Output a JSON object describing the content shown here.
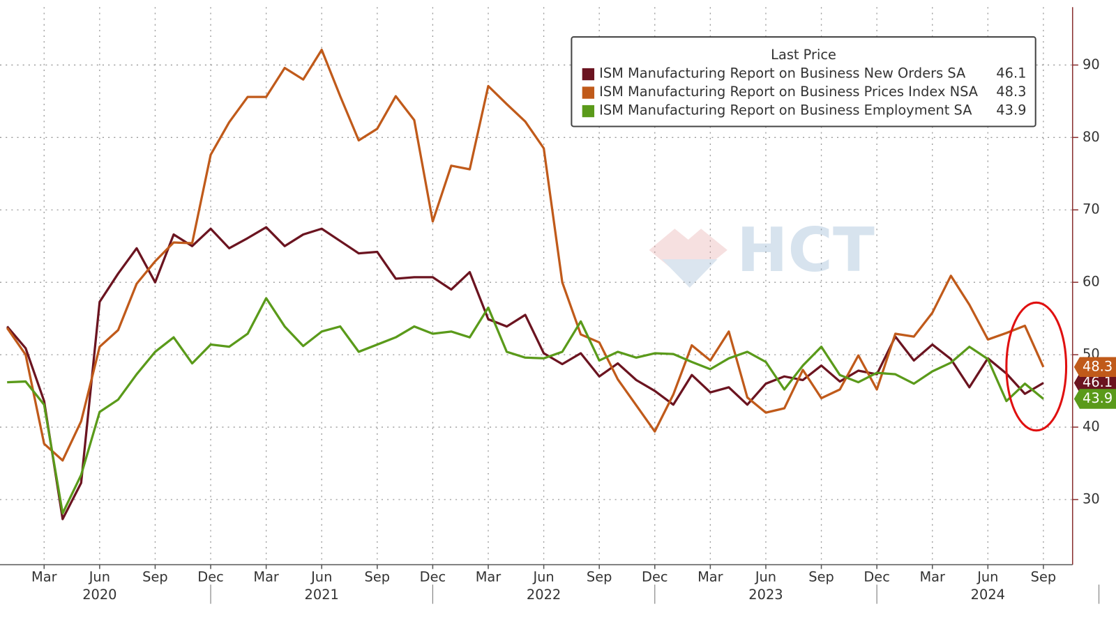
{
  "chart_data": {
    "type": "line",
    "watermark": "HCT",
    "legend_title": "Last Price",
    "x": [
      "2020-01",
      "2020-02",
      "2020-03",
      "2020-04",
      "2020-05",
      "2020-06",
      "2020-07",
      "2020-08",
      "2020-09",
      "2020-10",
      "2020-11",
      "2020-12",
      "2021-01",
      "2021-02",
      "2021-03",
      "2021-04",
      "2021-05",
      "2021-06",
      "2021-07",
      "2021-08",
      "2021-09",
      "2021-10",
      "2021-11",
      "2021-12",
      "2022-01",
      "2022-02",
      "2022-03",
      "2022-04",
      "2022-05",
      "2022-06",
      "2022-07",
      "2022-08",
      "2022-09",
      "2022-10",
      "2022-11",
      "2022-12",
      "2023-01",
      "2023-02",
      "2023-03",
      "2023-04",
      "2023-05",
      "2023-06",
      "2023-07",
      "2023-08",
      "2023-09",
      "2023-10",
      "2023-11",
      "2023-12",
      "2024-01",
      "2024-02",
      "2024-03",
      "2024-04",
      "2024-05",
      "2024-06",
      "2024-07",
      "2024-08",
      "2024-09"
    ],
    "xticks": [
      {
        "value": "2020-03",
        "label": "Mar"
      },
      {
        "value": "2020-06",
        "label": "Jun"
      },
      {
        "value": "2020-09",
        "label": "Sep"
      },
      {
        "value": "2020-12",
        "label": "Dec"
      },
      {
        "value": "2021-03",
        "label": "Mar"
      },
      {
        "value": "2021-06",
        "label": "Jun"
      },
      {
        "value": "2021-09",
        "label": "Sep"
      },
      {
        "value": "2021-12",
        "label": "Dec"
      },
      {
        "value": "2022-03",
        "label": "Mar"
      },
      {
        "value": "2022-06",
        "label": "Jun"
      },
      {
        "value": "2022-09",
        "label": "Sep"
      },
      {
        "value": "2022-12",
        "label": "Dec"
      },
      {
        "value": "2023-03",
        "label": "Mar"
      },
      {
        "value": "2023-06",
        "label": "Jun"
      },
      {
        "value": "2023-09",
        "label": "Sep"
      },
      {
        "value": "2023-12",
        "label": "Dec"
      },
      {
        "value": "2024-03",
        "label": "Mar"
      },
      {
        "value": "2024-06",
        "label": "Jun"
      },
      {
        "value": "2024-09",
        "label": "Sep"
      }
    ],
    "year_labels": [
      {
        "value": "2020-06",
        "label": "2020"
      },
      {
        "value": "2021-06",
        "label": "2021"
      },
      {
        "value": "2022-06",
        "label": "2022"
      },
      {
        "value": "2023-06",
        "label": "2023"
      },
      {
        "value": "2024-06",
        "label": "2024"
      }
    ],
    "ylim": [
      21,
      98
    ],
    "yticks": [
      30,
      40,
      50,
      60,
      70,
      80,
      90
    ],
    "grid": true,
    "y_axis_side": "right",
    "series": [
      {
        "name": "ISM Manufacturing Report on Business New Orders SA",
        "color": "#6b1420",
        "values": [
          53.9,
          50.9,
          43.6,
          27.3,
          32.3,
          57.3,
          61.2,
          64.7,
          60.0,
          66.6,
          65.0,
          67.4,
          64.7,
          66.1,
          67.6,
          65.0,
          66.6,
          67.4,
          65.7,
          64.0,
          64.2,
          60.5,
          60.7,
          60.7,
          59.0,
          61.4,
          54.9,
          53.9,
          55.5,
          50.2,
          48.7,
          50.2,
          47.0,
          48.8,
          46.5,
          45.0,
          43.1,
          47.2,
          44.8,
          45.5,
          43.1,
          46.0,
          47.0,
          46.5,
          48.5,
          46.3,
          47.8,
          47.3,
          52.5,
          49.2,
          51.4,
          49.4,
          45.5,
          49.5,
          47.4,
          44.6,
          46.1
        ]
      },
      {
        "name": "ISM Manufacturing Report on Business Prices Index NSA",
        "color": "#c05a1a",
        "values": [
          53.7,
          50.0,
          37.7,
          35.4,
          40.8,
          51.1,
          53.4,
          59.8,
          62.9,
          65.5,
          65.4,
          77.6,
          82.1,
          85.6,
          85.6,
          89.6,
          88.0,
          92.1,
          85.7,
          79.6,
          81.2,
          85.7,
          82.4,
          68.4,
          76.1,
          75.6,
          87.1,
          84.6,
          82.2,
          78.5,
          60.0,
          52.8,
          51.7,
          46.6,
          43.0,
          39.4,
          44.5,
          51.3,
          49.2,
          53.2,
          44.1,
          42.0,
          42.6,
          47.9,
          44.0,
          45.2,
          49.9,
          45.2,
          52.9,
          52.5,
          55.8,
          60.9,
          56.9,
          52.1,
          53.0,
          54.0,
          48.3
        ]
      },
      {
        "name": "ISM Manufacturing Report on Business Employment SA",
        "color": "#5a9a1a",
        "values": [
          46.2,
          46.3,
          43.1,
          28.1,
          33.4,
          42.1,
          43.8,
          47.3,
          50.4,
          52.4,
          48.8,
          51.4,
          51.1,
          52.9,
          57.8,
          53.9,
          51.2,
          53.2,
          53.9,
          50.4,
          51.4,
          52.4,
          53.9,
          52.9,
          53.2,
          52.4,
          56.5,
          50.4,
          49.6,
          49.5,
          50.4,
          54.6,
          49.2,
          50.4,
          49.6,
          50.2,
          50.1,
          49.0,
          48.0,
          49.5,
          50.4,
          49.0,
          45.2,
          48.5,
          51.1,
          47.2,
          46.2,
          47.5,
          47.3,
          46.0,
          47.7,
          48.9,
          51.1,
          49.4,
          43.6,
          46.0,
          43.9
        ]
      }
    ]
  }
}
